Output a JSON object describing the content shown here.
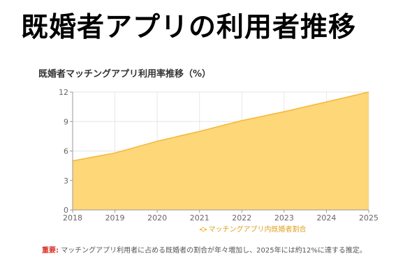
{
  "headline": "既婚者アプリの利用者推移",
  "note": {
    "label": "重要",
    "separator": ":",
    "text": "マッチングアプリ利用者に占める既婚者の割合が年々増加し、2025年には約12%に達する推定。"
  },
  "chart_data": {
    "type": "area",
    "title": "既婚者マッチングアプリ利用率推移（%）",
    "xlabel": "",
    "ylabel": "",
    "x": [
      "2018",
      "2019",
      "2020",
      "2021",
      "2022",
      "2023",
      "2024",
      "2025"
    ],
    "series": [
      {
        "name": "マッチングアプリ内既婚者割合",
        "values": [
          5.0,
          5.8,
          7.0,
          8.0,
          9.1,
          10.0,
          11.0,
          12.0
        ]
      }
    ],
    "ylim": [
      0,
      12
    ],
    "yticks": [
      "0",
      "3",
      "6",
      "9",
      "12"
    ],
    "grid": true,
    "legend_position": "bottom",
    "colors": {
      "fill": "#fdd778",
      "line": "#f5b638",
      "grid": "#e6e6e6",
      "axis": "#999999"
    }
  }
}
